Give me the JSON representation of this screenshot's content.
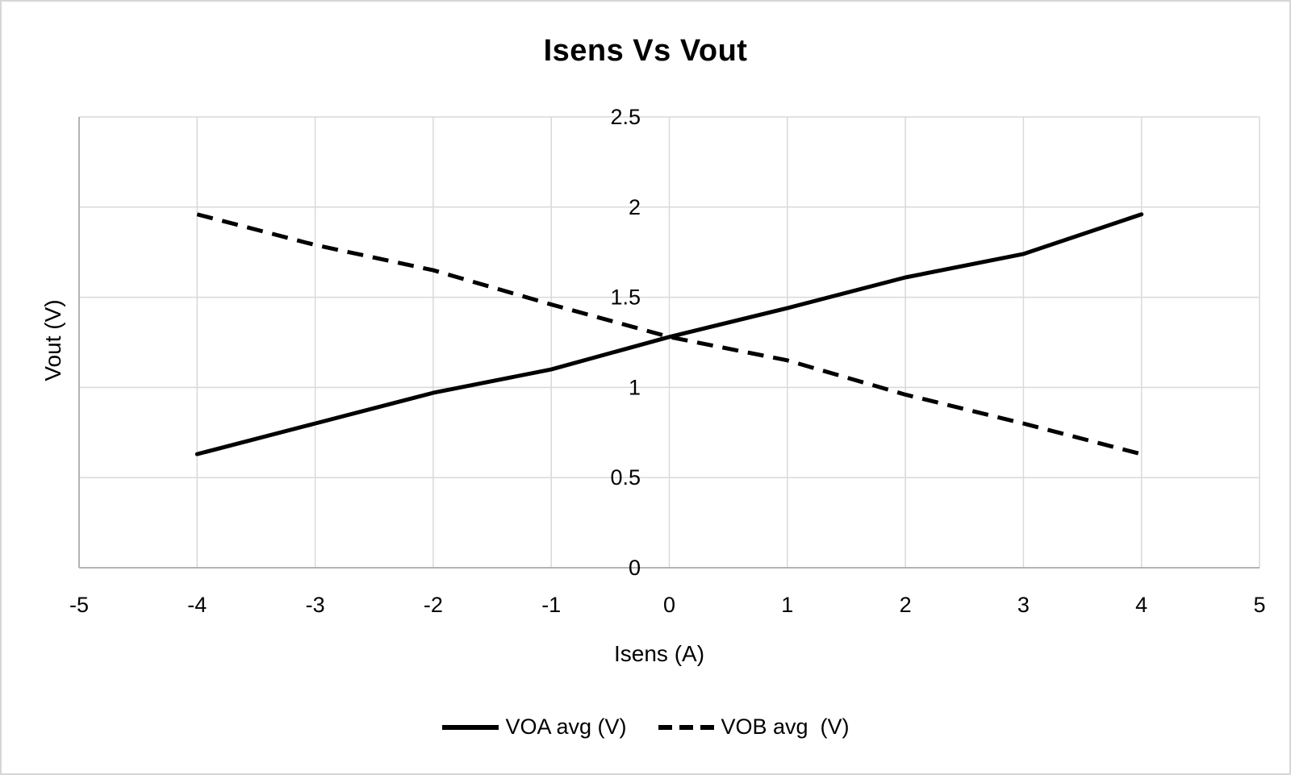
{
  "chart_data": {
    "type": "line",
    "title": "Isens Vs Vout",
    "xlabel": "Isens (A)",
    "ylabel": "Vout (V)",
    "xlim": [
      -5,
      5
    ],
    "ylim": [
      0,
      2.5
    ],
    "x_ticks": [
      -5,
      -4,
      -3,
      -2,
      -1,
      0,
      1,
      2,
      3,
      4,
      5
    ],
    "y_ticks": [
      0,
      0.5,
      1,
      1.5,
      2,
      2.5
    ],
    "grid": true,
    "legend_position": "bottom",
    "x": [
      -4,
      -3,
      -2,
      -1,
      0,
      1,
      2,
      3,
      4
    ],
    "series": [
      {
        "name": "VOA avg (V)",
        "line_style": "solid",
        "color": "#000000",
        "values": [
          0.63,
          0.8,
          0.97,
          1.1,
          1.28,
          1.44,
          1.61,
          1.74,
          1.96
        ]
      },
      {
        "name": "VOB avg  (V)",
        "line_style": "dashed",
        "color": "#000000",
        "values": [
          1.96,
          1.79,
          1.65,
          1.46,
          1.28,
          1.15,
          0.96,
          0.8,
          0.63
        ]
      }
    ],
    "colors": {
      "gridline": "#d9d9d9",
      "axis_line": "#b3b3b3",
      "text": "#000000",
      "background": "#ffffff"
    }
  }
}
